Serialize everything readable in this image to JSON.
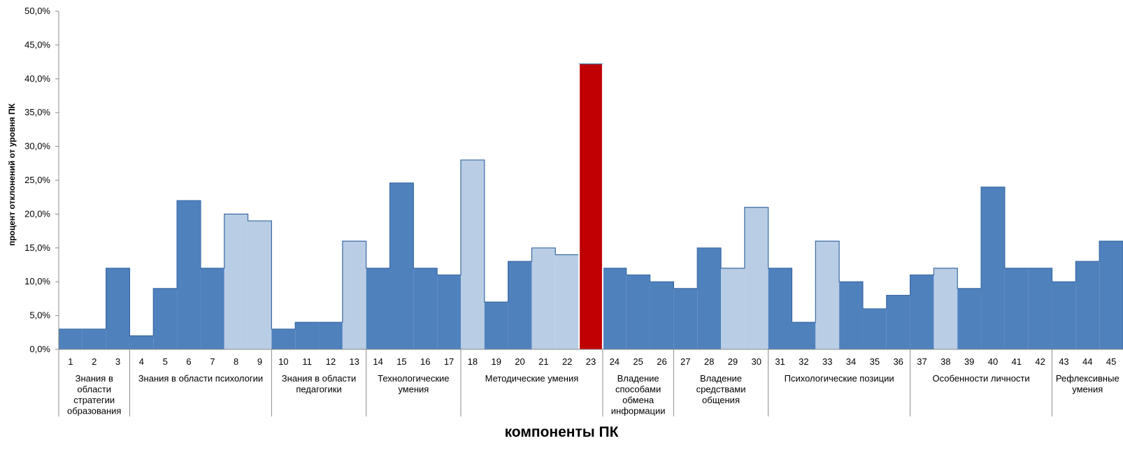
{
  "chart_data": {
    "type": "bar",
    "ylabel": "процент отклонений от уровня ПК",
    "xlabel": "компоненты ПК",
    "ylim": [
      0,
      50
    ],
    "y_ticks": [
      "0,0%",
      "5,0%",
      "10,0%",
      "15,0%",
      "20,0%",
      "25,0%",
      "30,0%",
      "35,0%",
      "40,0%",
      "45,0%",
      "50,0%"
    ],
    "categories": [
      "1",
      "2",
      "3",
      "4",
      "5",
      "6",
      "7",
      "8",
      "9",
      "10",
      "11",
      "12",
      "13",
      "14",
      "15",
      "16",
      "17",
      "18",
      "19",
      "20",
      "21",
      "22",
      "23",
      "24",
      "25",
      "26",
      "27",
      "28",
      "29",
      "30",
      "31",
      "32",
      "33",
      "34",
      "35",
      "36",
      "37",
      "38",
      "39",
      "40",
      "41",
      "42",
      "43",
      "44",
      "45"
    ],
    "values": [
      3,
      3,
      12,
      2,
      9,
      22,
      12,
      20,
      19,
      3,
      4,
      4,
      16,
      12,
      24.6,
      12,
      11,
      28,
      7,
      13,
      15,
      14,
      42.2,
      12,
      11,
      10,
      9,
      15,
      12,
      21,
      12,
      4,
      16,
      10,
      6,
      8,
      11,
      12,
      9,
      24,
      12,
      12,
      10,
      13,
      16
    ],
    "bar_color_types": [
      "dark",
      "dark",
      "dark",
      "dark",
      "dark",
      "dark",
      "dark",
      "light",
      "light",
      "dark",
      "dark",
      "dark",
      "light",
      "dark",
      "dark",
      "dark",
      "dark",
      "light",
      "dark",
      "dark",
      "light",
      "light",
      "red",
      "dark",
      "dark",
      "dark",
      "dark",
      "dark",
      "light",
      "light",
      "dark",
      "dark",
      "light",
      "dark",
      "dark",
      "dark",
      "dark",
      "light",
      "dark",
      "dark",
      "dark",
      "dark",
      "dark",
      "dark",
      "dark"
    ],
    "colors": {
      "dark": "#4f81bd",
      "light": "#b9cde5",
      "red": "#c00000"
    },
    "groups": [
      {
        "lines": [
          "Знания в",
          "области",
          "стратегии",
          "образования"
        ],
        "start": 0,
        "end": 2
      },
      {
        "lines": [
          "Знания в области психологии"
        ],
        "start": 3,
        "end": 8
      },
      {
        "lines": [
          "Знания в области",
          "педагогики"
        ],
        "start": 9,
        "end": 12
      },
      {
        "lines": [
          "Технологические",
          "умения"
        ],
        "start": 13,
        "end": 16
      },
      {
        "lines": [
          "Методические умения"
        ],
        "start": 17,
        "end": 22
      },
      {
        "lines": [
          "Владение",
          "способами",
          "обмена",
          "информации"
        ],
        "start": 23,
        "end": 25
      },
      {
        "lines": [
          "Владение",
          "средствами",
          "общения"
        ],
        "start": 26,
        "end": 29
      },
      {
        "lines": [
          "Психологические позиции"
        ],
        "start": 30,
        "end": 35
      },
      {
        "lines": [
          "Особенности личности"
        ],
        "start": 36,
        "end": 41
      },
      {
        "lines": [
          "Рефлексивные",
          "умения"
        ],
        "start": 42,
        "end": 44
      }
    ]
  }
}
